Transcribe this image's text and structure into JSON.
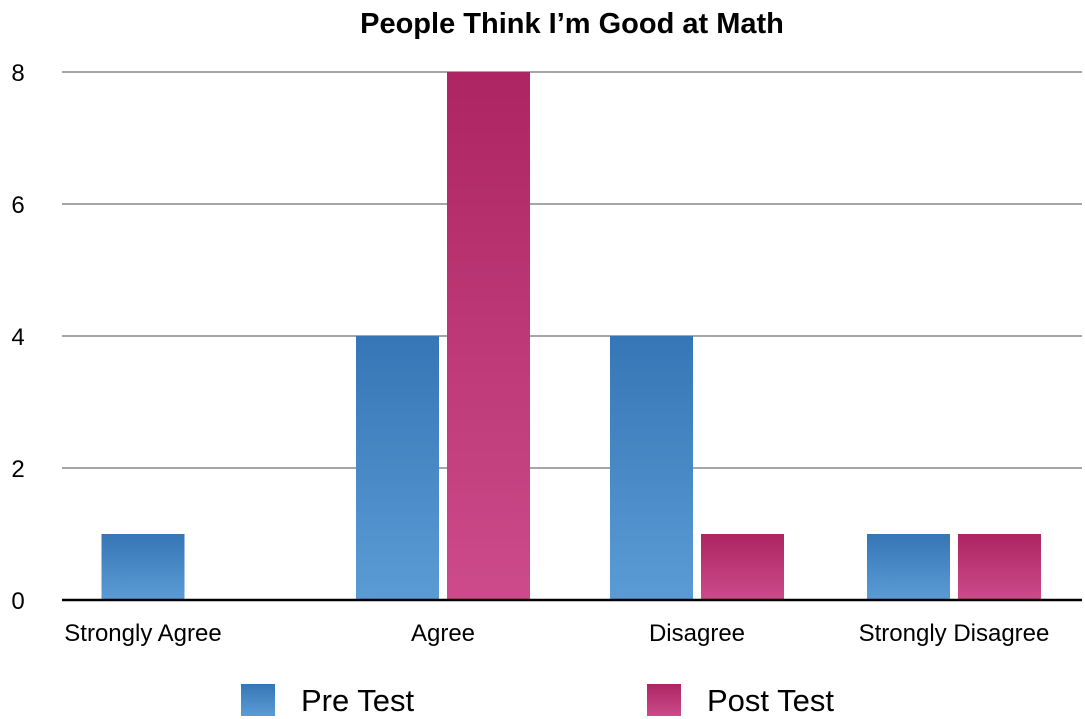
{
  "chart_data": {
    "type": "bar",
    "title": "People Think I’m Good at Math",
    "xlabel": "",
    "ylabel": "",
    "categories": [
      "Strongly Agree",
      "Agree",
      "Disagree",
      "Strongly Disagree"
    ],
    "series": [
      {
        "name": "Pre Test",
        "values": [
          1,
          4,
          4,
          1
        ],
        "color": "#4a8bc8"
      },
      {
        "name": "Post Test",
        "values": [
          0,
          8,
          1,
          1
        ],
        "color": "#c23a78"
      }
    ],
    "ylim": [
      0,
      8
    ],
    "yticks": [
      0,
      2,
      4,
      6,
      8
    ],
    "grid": true,
    "legend_position": "bottom"
  }
}
